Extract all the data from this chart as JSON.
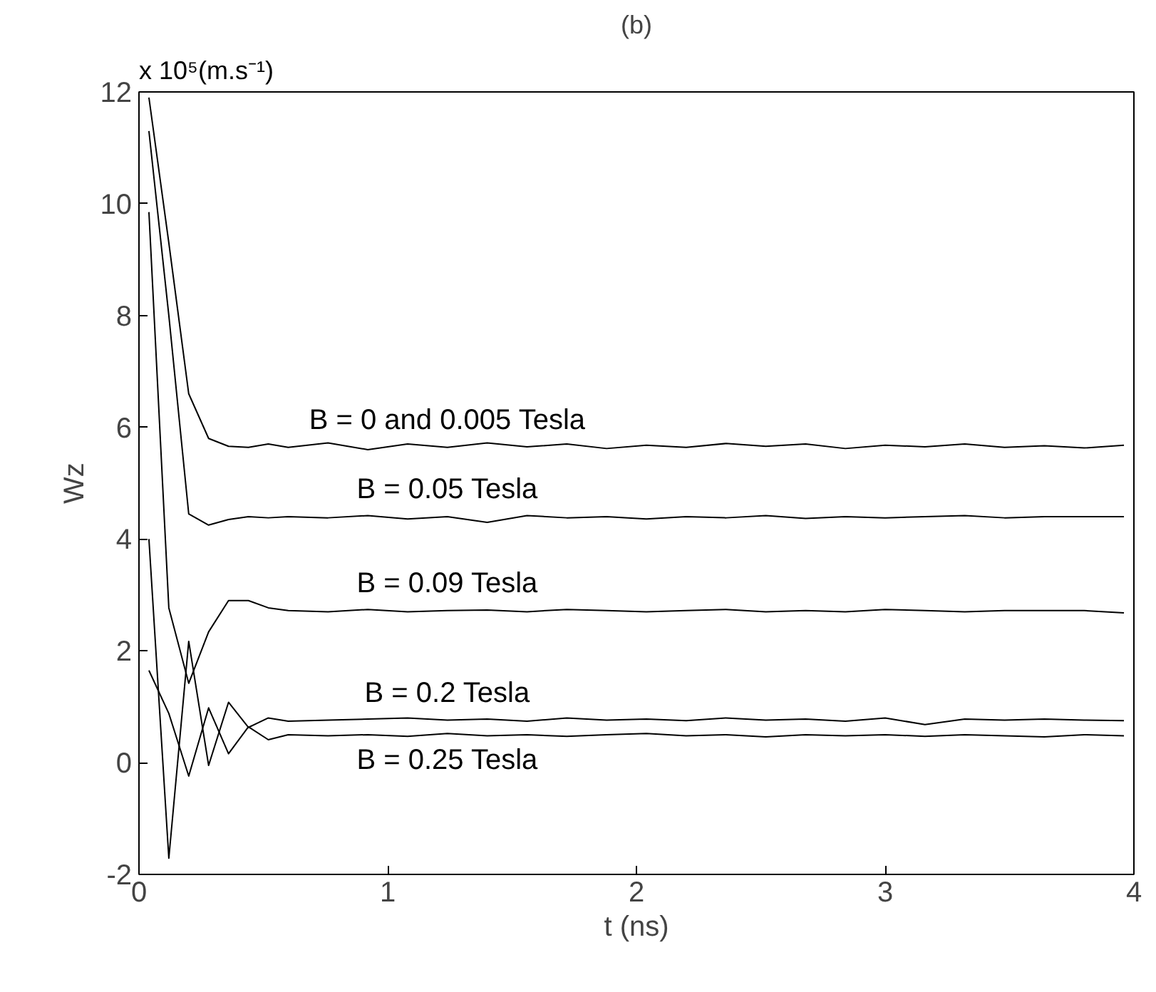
{
  "chart_data": {
    "type": "line",
    "title": "(b)",
    "xlabel": "t (ns)",
    "ylabel": "Wz",
    "annotations": [
      "x 10⁵(m.s⁻¹)"
    ],
    "x": [
      0.04,
      0.12,
      0.2,
      0.28,
      0.36,
      0.44,
      0.52,
      0.6,
      0.76,
      0.92,
      1.08,
      1.24,
      1.4,
      1.56,
      1.72,
      1.88,
      2.04,
      2.2,
      2.36,
      2.52,
      2.68,
      2.84,
      3.0,
      3.16,
      3.32,
      3.48,
      3.64,
      3.8,
      3.96
    ],
    "series": [
      {
        "name": "B = 0 and 0.005 Tesla",
        "color": "#000000",
        "values": [
          11.9,
          9.3,
          6.6,
          5.8,
          5.66,
          5.64,
          5.7,
          5.64,
          5.72,
          5.6,
          5.7,
          5.64,
          5.72,
          5.65,
          5.7,
          5.62,
          5.68,
          5.64,
          5.71,
          5.66,
          5.7,
          5.62,
          5.68,
          5.65,
          5.7,
          5.64,
          5.67,
          5.63,
          5.68
        ]
      },
      {
        "name": "B = 0.05 Tesla",
        "color": "#000000",
        "values": [
          11.3,
          8.0,
          4.45,
          4.25,
          4.35,
          4.4,
          4.38,
          4.4,
          4.38,
          4.42,
          4.36,
          4.4,
          4.3,
          4.42,
          4.38,
          4.4,
          4.36,
          4.4,
          4.38,
          4.42,
          4.37,
          4.4,
          4.38,
          4.4,
          4.42,
          4.38,
          4.4,
          4.4,
          4.4
        ]
      },
      {
        "name": "B = 0.09 Tesla",
        "color": "#000000",
        "values": [
          9.85,
          2.77,
          1.42,
          2.34,
          2.9,
          2.9,
          2.77,
          2.72,
          2.7,
          2.74,
          2.7,
          2.72,
          2.73,
          2.7,
          2.74,
          2.72,
          2.7,
          2.72,
          2.74,
          2.7,
          2.72,
          2.7,
          2.74,
          2.72,
          2.7,
          2.72,
          2.72,
          2.72,
          2.68
        ]
      },
      {
        "name": "B = 0.2 Tesla",
        "color": "#000000",
        "values": [
          4.0,
          -1.71,
          2.17,
          -0.05,
          1.08,
          0.63,
          0.8,
          0.74,
          0.76,
          0.78,
          0.8,
          0.76,
          0.78,
          0.74,
          0.8,
          0.76,
          0.78,
          0.75,
          0.8,
          0.76,
          0.78,
          0.74,
          0.8,
          0.68,
          0.78,
          0.76,
          0.78,
          0.76,
          0.75
        ]
      },
      {
        "name": "B = 0.25 Tesla",
        "color": "#000000",
        "values": [
          1.65,
          0.88,
          -0.24,
          0.98,
          0.16,
          0.64,
          0.41,
          0.5,
          0.48,
          0.5,
          0.47,
          0.52,
          0.48,
          0.5,
          0.47,
          0.5,
          0.52,
          0.48,
          0.5,
          0.46,
          0.5,
          0.48,
          0.5,
          0.47,
          0.5,
          0.48,
          0.46,
          0.5,
          0.48
        ]
      }
    ],
    "xlim": [
      0,
      4
    ],
    "ylim": [
      -2,
      12
    ],
    "xticks": [
      0,
      1,
      2,
      3,
      4
    ],
    "yticks": [
      -2,
      0,
      2,
      4,
      6,
      8,
      10,
      12
    ]
  }
}
